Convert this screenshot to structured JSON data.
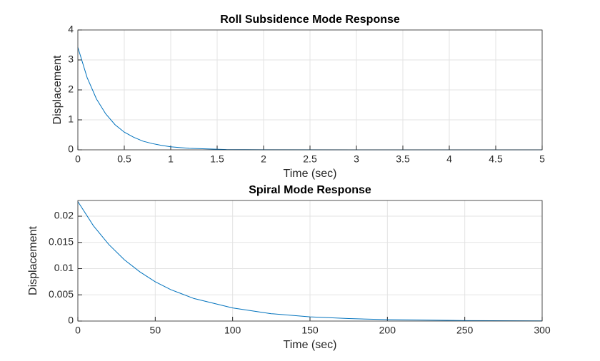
{
  "chart_data": [
    {
      "type": "line",
      "title": "Roll Subsidence Mode Response",
      "xlabel": "Time (sec)",
      "ylabel": "Displacement",
      "x": [
        0,
        0.1,
        0.2,
        0.3,
        0.4,
        0.5,
        0.6,
        0.7,
        0.8,
        0.9,
        1.0,
        1.2,
        1.4,
        1.6,
        2,
        3,
        4,
        5
      ],
      "values": [
        3.42,
        2.41,
        1.7,
        1.2,
        0.84,
        0.59,
        0.42,
        0.29,
        0.21,
        0.15,
        0.1,
        0.05,
        0.03,
        0.01,
        0.003,
        0,
        0,
        0
      ],
      "color": "#0072bd",
      "grid": true,
      "xlim": [
        0,
        5
      ],
      "xticks": [
        0,
        0.5,
        1,
        1.5,
        2,
        2.5,
        3,
        3.5,
        4,
        4.5,
        5
      ],
      "ylim": [
        0,
        4
      ],
      "yticks": [
        0,
        1,
        2,
        3,
        4
      ]
    },
    {
      "type": "line",
      "title": "Spiral Mode Response",
      "xlabel": "Time (sec)",
      "ylabel": "Displacement",
      "x": [
        0,
        10,
        20,
        30,
        40,
        50,
        60,
        75,
        100,
        125,
        150,
        175,
        200,
        250,
        300
      ],
      "values": [
        0.0228,
        0.0182,
        0.0146,
        0.0117,
        0.0094,
        0.0075,
        0.006,
        0.0043,
        0.0025,
        0.0014,
        0.0008,
        0.00047,
        0.00027,
        9e-05,
        3e-05
      ],
      "color": "#0072bd",
      "grid": true,
      "xlim": [
        0,
        300
      ],
      "xticks": [
        0,
        50,
        100,
        150,
        200,
        250,
        300
      ],
      "ylim": [
        0,
        0.023
      ],
      "yticks": [
        0,
        0.005,
        0.01,
        0.015,
        0.02
      ]
    }
  ]
}
